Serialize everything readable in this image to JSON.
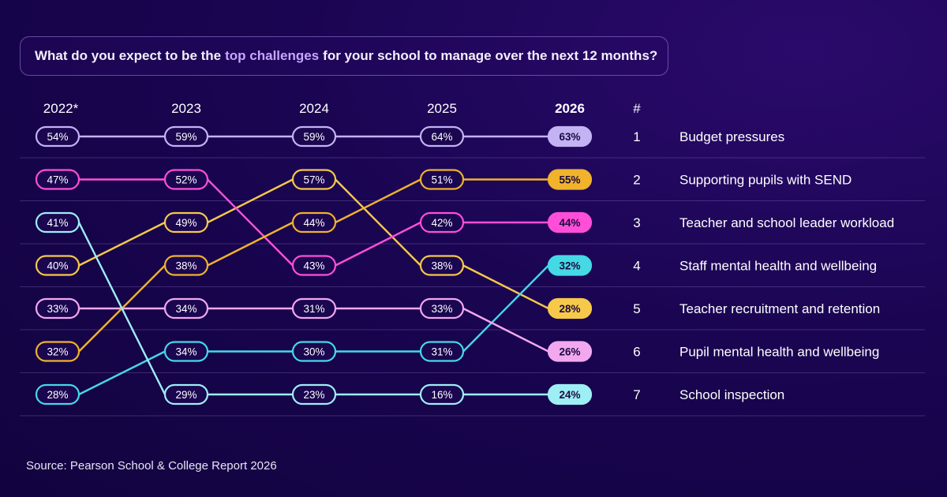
{
  "title": {
    "before": "What do you expect to be the",
    "highlight": "top challenges",
    "after": "for your school to manage over the next 12 months?"
  },
  "rank_header": "#",
  "source": "Source:  Pearson School & College Report 2026",
  "chart_data": {
    "type": "line",
    "title": "What do you expect to be the top challenges for your school to manage over the next 12 months?",
    "years": [
      "2022*",
      "2023",
      "2024",
      "2025",
      "2026"
    ],
    "ranks": [
      "1",
      "2",
      "3",
      "4",
      "5",
      "6",
      "7"
    ],
    "final_labels": [
      "Budget pressures",
      "Supporting pupils with SEND",
      "Teacher and school leader workload",
      "Staff mental health and wellbeing",
      "Teacher recruitment and retention",
      "Pupil mental health and wellbeing",
      "School inspection"
    ],
    "series": [
      {
        "color": "#c3b3f5",
        "values": [
          54,
          59,
          59,
          64,
          63
        ],
        "ranks": [
          1,
          1,
          1,
          1,
          1
        ]
      },
      {
        "color": "#f7c94a",
        "values": [
          40,
          49,
          57,
          38,
          28
        ],
        "ranks": [
          4,
          3,
          2,
          4,
          5
        ]
      },
      {
        "color": "#ff4fd8",
        "values": [
          47,
          52,
          43,
          42,
          44
        ],
        "ranks": [
          2,
          2,
          4,
          3,
          3
        ]
      },
      {
        "color": "#45d9e6",
        "values": [
          28,
          34,
          30,
          31,
          32
        ],
        "ranks": [
          7,
          6,
          6,
          6,
          4
        ]
      },
      {
        "color": "#f2a8ef",
        "values": [
          33,
          34,
          31,
          33,
          26
        ],
        "ranks": [
          5,
          5,
          5,
          5,
          6
        ]
      },
      {
        "color": "#f0b32b",
        "values": [
          32,
          38,
          44,
          51,
          55
        ],
        "ranks": [
          6,
          4,
          3,
          2,
          2
        ]
      },
      {
        "color": "#9eeef5",
        "values": [
          41,
          29,
          23,
          16,
          24
        ],
        "ranks": [
          3,
          7,
          7,
          7,
          7
        ]
      }
    ]
  }
}
